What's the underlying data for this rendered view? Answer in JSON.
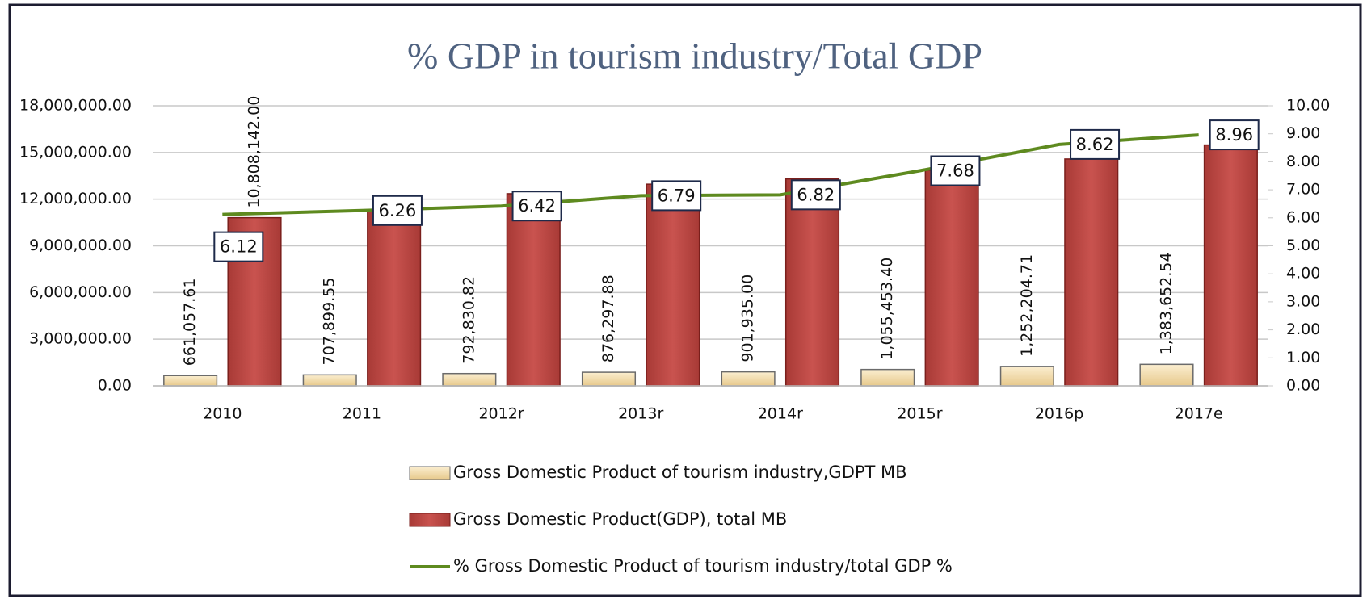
{
  "chart_data": {
    "type": "bar-line",
    "title": "% GDP in tourism industry/Total GDP",
    "categories": [
      "2010",
      "2011",
      "2012r",
      "2013r",
      "2014r",
      "2015r",
      "2016p",
      "2017e"
    ],
    "series": [
      {
        "name": "Gross Domestic Product of tourism industry,GDPT MB",
        "color": "#f3deb0",
        "type": "bar",
        "values": [
          661057.61,
          707899.55,
          792830.82,
          876297.88,
          901935.0,
          1055453.4,
          1252204.71,
          1383652.54
        ],
        "value_labels": [
          "661,057.61",
          "707,899.55",
          "792,830.82",
          "876,297.88",
          "901,935.00",
          "1,055,453.40",
          "1,252,204.71",
          "1,383,652.54"
        ]
      },
      {
        "name": "Gross Domestic Product(GDP), total MB",
        "color": "#c0504d",
        "type": "bar",
        "values": [
          10808142.0,
          11230000,
          12350000,
          12960000,
          13300000,
          13860000,
          14580000,
          15480000
        ],
        "value_labels": [
          "10,808,142.00",
          null,
          null,
          null,
          null,
          null,
          null,
          null
        ]
      },
      {
        "name": "% Gross Domestic Product of tourism industry/total GDP  %",
        "color": "#5e8a1f",
        "type": "line",
        "axis": "y2",
        "values": [
          6.12,
          6.26,
          6.42,
          6.79,
          6.82,
          7.68,
          8.62,
          8.96
        ]
      }
    ],
    "ylim": [
      0,
      18000000
    ],
    "yticks": [
      {
        "value": 0,
        "label": "0.00"
      },
      {
        "value": 3000000,
        "label": "3,000,000.00"
      },
      {
        "value": 6000000,
        "label": "6,000,000.00"
      },
      {
        "value": 9000000,
        "label": "9,000,000.00"
      },
      {
        "value": 12000000,
        "label": "12,000,000.00"
      },
      {
        "value": 15000000,
        "label": "15,000,000.00"
      },
      {
        "value": 18000000,
        "label": "18,000,000.00"
      }
    ],
    "y2lim": [
      0,
      10
    ],
    "y2ticks": [
      {
        "value": 0,
        "label": "0.00"
      },
      {
        "value": 1,
        "label": "1.00"
      },
      {
        "value": 2,
        "label": "2.00"
      },
      {
        "value": 3,
        "label": "3.00"
      },
      {
        "value": 4,
        "label": "4.00"
      },
      {
        "value": 5,
        "label": "5.00"
      },
      {
        "value": 6,
        "label": "6.00"
      },
      {
        "value": 7,
        "label": "7.00"
      },
      {
        "value": 8,
        "label": "8.00"
      },
      {
        "value": 9,
        "label": "9.00"
      },
      {
        "value": 10,
        "label": "10.00"
      }
    ],
    "grid": true,
    "legend": "bottom"
  }
}
